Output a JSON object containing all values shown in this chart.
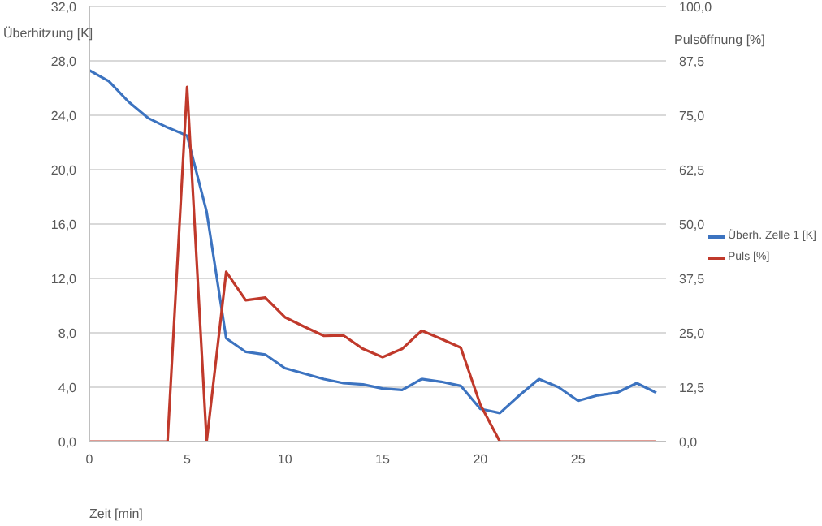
{
  "chart_data": {
    "type": "line",
    "xlabel": "Zeit  [min]",
    "ylabel": "Überhitzung  [K]",
    "y2label": "Pulsöffnung  [%]",
    "x": [
      0,
      1,
      2,
      3,
      4,
      5,
      6,
      7,
      8,
      9,
      10,
      11,
      12,
      13,
      14,
      15,
      16,
      17,
      18,
      19,
      20,
      21,
      22,
      23,
      24,
      25,
      26,
      27,
      28,
      29
    ],
    "series": [
      {
        "name": "Überh. Zelle 1 [K]",
        "color": "#3c73c0",
        "values": [
          27.3,
          26.5,
          25.0,
          23.8,
          23.1,
          22.5,
          16.9,
          7.6,
          6.6,
          6.4,
          5.4,
          5.0,
          4.6,
          4.3,
          4.2,
          3.9,
          3.8,
          4.6,
          4.4,
          4.1,
          2.4,
          2.1,
          3.4,
          4.6,
          4.0,
          3.0,
          3.4,
          3.6,
          4.3,
          3.6
        ]
      },
      {
        "name": "Puls  [%]",
        "color": "#c0392b",
        "axis": "y2",
        "values": [
          0,
          0,
          0,
          0,
          0,
          81.5,
          0,
          39.0,
          32.5,
          33.1,
          28.6,
          26.4,
          24.3,
          24.4,
          21.3,
          19.4,
          21.3,
          25.5,
          23.6,
          21.6,
          8.5,
          0,
          0,
          0,
          0,
          0,
          0,
          0,
          0,
          0
        ]
      }
    ],
    "xlim": [
      0,
      29.5
    ],
    "xticks": [
      0,
      5,
      10,
      15,
      20,
      25
    ],
    "ylim": [
      0,
      32
    ],
    "yticks": [
      {
        "value": 0,
        "label": "0,0"
      },
      {
        "value": 4,
        "label": "4,0"
      },
      {
        "value": 8,
        "label": "8,0"
      },
      {
        "value": 12,
        "label": "12,0"
      },
      {
        "value": 16,
        "label": "16,0"
      },
      {
        "value": 20,
        "label": "20,0"
      },
      {
        "value": 24,
        "label": "24,0"
      },
      {
        "value": 28,
        "label": "28,0"
      },
      {
        "value": 32,
        "label": "32,0"
      }
    ],
    "y2lim": [
      0,
      100
    ],
    "y2ticks": [
      {
        "value": 0,
        "label": "0,0"
      },
      {
        "value": 12.5,
        "label": "12,5"
      },
      {
        "value": 25,
        "label": "25,0"
      },
      {
        "value": 37.5,
        "label": "37,5"
      },
      {
        "value": 50,
        "label": "50,0"
      },
      {
        "value": 62.5,
        "label": "62,5"
      },
      {
        "value": 75,
        "label": "75,0"
      },
      {
        "value": 87.5,
        "label": "87,5"
      },
      {
        "value": 100,
        "label": "100,0"
      }
    ],
    "grid": "y",
    "legend": "right",
    "marker": "none",
    "line_style": "solid"
  }
}
